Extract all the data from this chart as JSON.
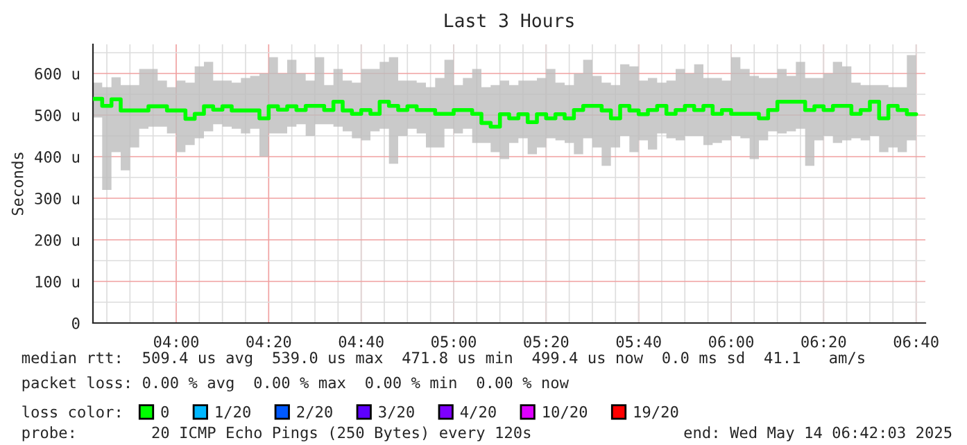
{
  "chart_data": {
    "type": "step",
    "title": "Last 3 Hours",
    "ylabel": "Seconds",
    "legend_title": "loss color:",
    "x": [
      3.7,
      3.7333,
      3.7667,
      3.8,
      3.8333,
      3.8667,
      3.9,
      3.9333,
      3.9667,
      4.0,
      4.0333,
      4.0667,
      4.1,
      4.1333,
      4.1667,
      4.2,
      4.2333,
      4.2667,
      4.3,
      4.3333,
      4.3667,
      4.4,
      4.4333,
      4.4667,
      4.5,
      4.5333,
      4.5667,
      4.6,
      4.6333,
      4.6667,
      4.7,
      4.7333,
      4.7667,
      4.8,
      4.8333,
      4.8667,
      4.9,
      4.9333,
      4.9667,
      5.0,
      5.0333,
      5.0667,
      5.1,
      5.1333,
      5.1667,
      5.2,
      5.2333,
      5.2667,
      5.3,
      5.3333,
      5.3667,
      5.4,
      5.4333,
      5.4667,
      5.5,
      5.5333,
      5.5667,
      5.6,
      5.6333,
      5.6667,
      5.7,
      5.7333,
      5.7667,
      5.8,
      5.8333,
      5.8667,
      5.9,
      5.9333,
      5.9667,
      6.0,
      6.0333,
      6.0667,
      6.1,
      6.1333,
      6.1667,
      6.2,
      6.2333,
      6.2667,
      6.3,
      6.3333,
      6.3667,
      6.4,
      6.4333,
      6.4667,
      6.5,
      6.5333,
      6.5667,
      6.6,
      6.6333,
      6.6667
    ],
    "series": [
      {
        "name": "0",
        "color": "#00ff00",
        "values": [
          539,
          522,
          538,
          511,
          511,
          511,
          521,
          521,
          511,
          511,
          491,
          503,
          521,
          513,
          521,
          511,
          511,
          511,
          492,
          521,
          513,
          521,
          512,
          522,
          522,
          512,
          532,
          511,
          503,
          512,
          503,
          532,
          522,
          512,
          521,
          512,
          512,
          503,
          503,
          512,
          512,
          503,
          481,
          472,
          502,
          492,
          502,
          483,
          502,
          492,
          502,
          492,
          512,
          522,
          522,
          511,
          492,
          522,
          511,
          502,
          512,
          522,
          503,
          512,
          522,
          512,
          522,
          503,
          512,
          503,
          503,
          503,
          492,
          512,
          532,
          532,
          532,
          512,
          521,
          512,
          522,
          522,
          503,
          512,
          532,
          492,
          522,
          512,
          502,
          502
        ],
        "upper": [
          578,
          567,
          591,
          572,
          572,
          611,
          611,
          583,
          567,
          583,
          578,
          617,
          628,
          583,
          583,
          578,
          589,
          594,
          600,
          639,
          600,
          633,
          600,
          583,
          639,
          572,
          611,
          583,
          578,
          611,
          611,
          628,
          639,
          583,
          583,
          578,
          567,
          589,
          633,
          572,
          589,
          611,
          567,
          572,
          583,
          572,
          583,
          583,
          589,
          611,
          578,
          572,
          600,
          633,
          594,
          578,
          572,
          622,
          617,
          583,
          589,
          578,
          583,
          611,
          600,
          622,
          589,
          589,
          583,
          639,
          611,
          594,
          589,
          589,
          611,
          594,
          628,
          589,
          589,
          600,
          628,
          617,
          578,
          572,
          572,
          572,
          567,
          567,
          644,
          644
        ],
        "lower": [
          494,
          320,
          411,
          367,
          422,
          467,
          472,
          472,
          456,
          411,
          428,
          444,
          461,
          478,
          472,
          467,
          456,
          467,
          400,
          456,
          456,
          472,
          478,
          450,
          478,
          478,
          472,
          461,
          444,
          439,
          461,
          467,
          383,
          450,
          467,
          456,
          422,
          422,
          467,
          456,
          467,
          433,
          433,
          411,
          394,
          433,
          444,
          406,
          422,
          444,
          439,
          433,
          406,
          444,
          422,
          378,
          422,
          450,
          411,
          439,
          417,
          456,
          444,
          439,
          450,
          450,
          428,
          433,
          439,
          450,
          444,
          394,
          439,
          461,
          456,
          461,
          467,
          378,
          439,
          450,
          433,
          439,
          444,
          439,
          450,
          411,
          422,
          411,
          439,
          400
        ]
      },
      {
        "name": "1/20",
        "color": "#00b8ff",
        "values": [
          null,
          null,
          null,
          null,
          null,
          null,
          null,
          null,
          null,
          null,
          null,
          null,
          null,
          null,
          null,
          null,
          null,
          null,
          null,
          null,
          null,
          null,
          null,
          null,
          null,
          null,
          null,
          null,
          null,
          null,
          null,
          null,
          null,
          null,
          null,
          null,
          null,
          null,
          null,
          null,
          null,
          null,
          null,
          null,
          null,
          null,
          null,
          null,
          null,
          null,
          null,
          null,
          null,
          null,
          null,
          null,
          null,
          null,
          null,
          null,
          null,
          null,
          null,
          null,
          null,
          null,
          null,
          null,
          null,
          null,
          null,
          null,
          null,
          null,
          null,
          null,
          null,
          null,
          null,
          null,
          null,
          null,
          null,
          null,
          null,
          null,
          null,
          null,
          null,
          null
        ]
      },
      {
        "name": "2/20",
        "color": "#0059ff",
        "values": [
          null,
          null,
          null,
          null,
          null,
          null,
          null,
          null,
          null,
          null,
          null,
          null,
          null,
          null,
          null,
          null,
          null,
          null,
          null,
          null,
          null,
          null,
          null,
          null,
          null,
          null,
          null,
          null,
          null,
          null,
          null,
          null,
          null,
          null,
          null,
          null,
          null,
          null,
          null,
          null,
          null,
          null,
          null,
          null,
          null,
          null,
          null,
          null,
          null,
          null,
          null,
          null,
          null,
          null,
          null,
          null,
          null,
          null,
          null,
          null,
          null,
          null,
          null,
          null,
          null,
          null,
          null,
          null,
          null,
          null,
          null,
          null,
          null,
          null,
          null,
          null,
          null,
          null,
          null,
          null,
          null,
          null,
          null,
          null,
          null,
          null,
          null,
          null,
          null,
          null
        ]
      },
      {
        "name": "3/20",
        "color": "#5e00ff",
        "values": [
          null,
          null,
          null,
          null,
          null,
          null,
          null,
          null,
          null,
          null,
          null,
          null,
          null,
          null,
          null,
          null,
          null,
          null,
          null,
          null,
          null,
          null,
          null,
          null,
          null,
          null,
          null,
          null,
          null,
          null,
          null,
          null,
          null,
          null,
          null,
          null,
          null,
          null,
          null,
          null,
          null,
          null,
          null,
          null,
          null,
          null,
          null,
          null,
          null,
          null,
          null,
          null,
          null,
          null,
          null,
          null,
          null,
          null,
          null,
          null,
          null,
          null,
          null,
          null,
          null,
          null,
          null,
          null,
          null,
          null,
          null,
          null,
          null,
          null,
          null,
          null,
          null,
          null,
          null,
          null,
          null,
          null,
          null,
          null,
          null,
          null,
          null,
          null,
          null,
          null
        ]
      },
      {
        "name": "4/20",
        "color": "#7e00ff",
        "values": [
          null,
          null,
          null,
          null,
          null,
          null,
          null,
          null,
          null,
          null,
          null,
          null,
          null,
          null,
          null,
          null,
          null,
          null,
          null,
          null,
          null,
          null,
          null,
          null,
          null,
          null,
          null,
          null,
          null,
          null,
          null,
          null,
          null,
          null,
          null,
          null,
          null,
          null,
          null,
          null,
          null,
          null,
          null,
          null,
          null,
          null,
          null,
          null,
          null,
          null,
          null,
          null,
          null,
          null,
          null,
          null,
          null,
          null,
          null,
          null,
          null,
          null,
          null,
          null,
          null,
          null,
          null,
          null,
          null,
          null,
          null,
          null,
          null,
          null,
          null,
          null,
          null,
          null,
          null,
          null,
          null,
          null,
          null,
          null,
          null,
          null,
          null,
          null,
          null,
          null
        ]
      },
      {
        "name": "10/20",
        "color": "#dd00ff",
        "values": [
          null,
          null,
          null,
          null,
          null,
          null,
          null,
          null,
          null,
          null,
          null,
          null,
          null,
          null,
          null,
          null,
          null,
          null,
          null,
          null,
          null,
          null,
          null,
          null,
          null,
          null,
          null,
          null,
          null,
          null,
          null,
          null,
          null,
          null,
          null,
          null,
          null,
          null,
          null,
          null,
          null,
          null,
          null,
          null,
          null,
          null,
          null,
          null,
          null,
          null,
          null,
          null,
          null,
          null,
          null,
          null,
          null,
          null,
          null,
          null,
          null,
          null,
          null,
          null,
          null,
          null,
          null,
          null,
          null,
          null,
          null,
          null,
          null,
          null,
          null,
          null,
          null,
          null,
          null,
          null,
          null,
          null,
          null,
          null,
          null,
          null,
          null,
          null,
          null,
          null
        ]
      },
      {
        "name": "19/20",
        "color": "#ff0000",
        "values": [
          null,
          null,
          null,
          null,
          null,
          null,
          null,
          null,
          null,
          null,
          null,
          null,
          null,
          null,
          null,
          null,
          null,
          null,
          null,
          null,
          null,
          null,
          null,
          null,
          null,
          null,
          null,
          null,
          null,
          null,
          null,
          null,
          null,
          null,
          null,
          null,
          null,
          null,
          null,
          null,
          null,
          null,
          null,
          null,
          null,
          null,
          null,
          null,
          null,
          null,
          null,
          null,
          null,
          null,
          null,
          null,
          null,
          null,
          null,
          null,
          null,
          null,
          null,
          null,
          null,
          null,
          null,
          null,
          null,
          null,
          null,
          null,
          null,
          null,
          null,
          null,
          null,
          null,
          null,
          null,
          null,
          null,
          null,
          null,
          null,
          null,
          null,
          null,
          null,
          null
        ]
      }
    ],
    "xlim": [
      3.7,
      6.7
    ],
    "xticks": [
      {
        "value": 4.0,
        "label": "04:00"
      },
      {
        "value": 4.3333,
        "label": "04:20"
      },
      {
        "value": 4.6667,
        "label": "04:40"
      },
      {
        "value": 5.0,
        "label": "05:00"
      },
      {
        "value": 5.3333,
        "label": "05:20"
      },
      {
        "value": 5.6667,
        "label": "05:40"
      },
      {
        "value": 6.0,
        "label": "06:00"
      },
      {
        "value": 6.3333,
        "label": "06:20"
      },
      {
        "value": 6.6667,
        "label": "06:40"
      }
    ],
    "ylim": [
      0,
      670
    ],
    "yticks": [
      0,
      {
        "value": 100,
        "label": "100 u"
      },
      {
        "value": 200,
        "label": "200 u"
      },
      {
        "value": 300,
        "label": "300 u"
      },
      {
        "value": 400,
        "label": "400 u"
      },
      {
        "value": 500,
        "label": "500 u"
      },
      {
        "value": 600,
        "label": "600 u"
      }
    ],
    "grid": true,
    "legend": "bottom",
    "annotations": [
      "median rtt:  509.4 us avg  539.0 us max  471.8 us min  499.4 us now  0.0 ms sd  41.1   am/s",
      "packet loss: 0.00 % avg  0.00 % max  0.00 % min  0.00 % now",
      "probe:        20 ICMP Echo Pings (250 Bytes) every 120s",
      "end: Wed May 14 06:42:03 2025"
    ]
  }
}
